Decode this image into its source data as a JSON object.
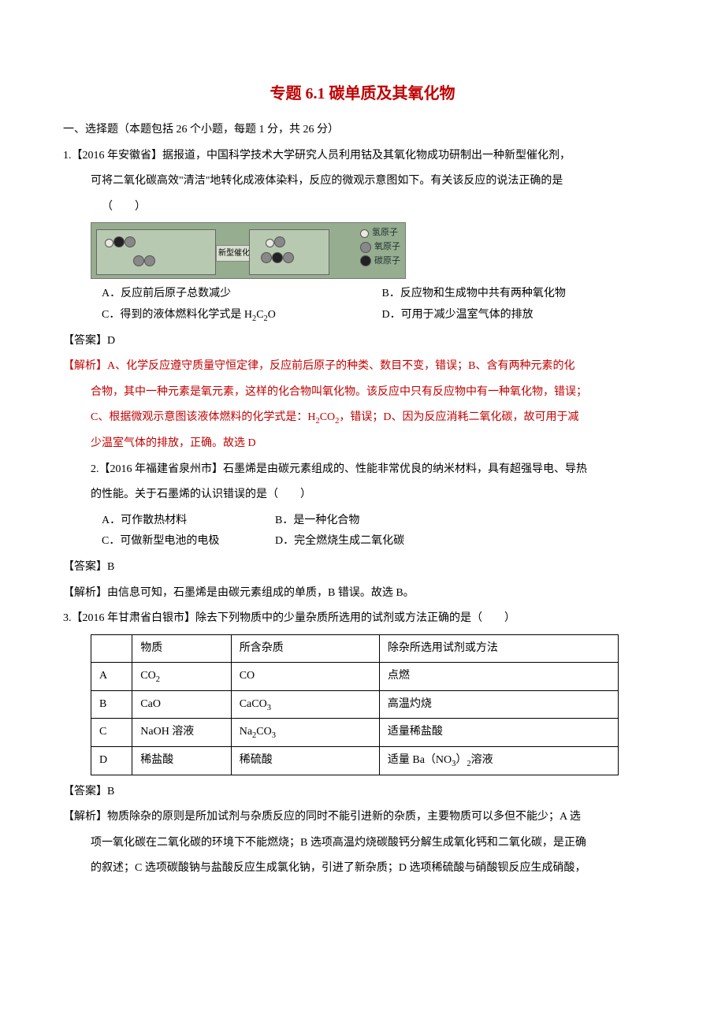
{
  "title": "专题 6.1 碳单质及其氧化物",
  "section_heading": "一、选择题（本题包括 26 个小题，每题 1 分，共 26 分）",
  "q1": {
    "stem_a": "1.【2016 年安徽省】据报道，中国科学技术大学研究人员利用钴及其氧化物成功研制出一种新型催化剂，",
    "stem_b": "可将二氧化碳高效\"清洁\"地转化成液体染料，反应的微观示意图如下。有关该反应的说法正确的是",
    "stem_c": "（　　）",
    "diagram": {
      "arrow_label": "新型催化剂",
      "legend": [
        "氢原子",
        "氧原子",
        "碳原子"
      ]
    },
    "optA": "A．反应前后原子总数减少",
    "optB": "B．反应物和生成物中共有两种氧化物",
    "optC": "C．得到的液体燃料化学式是 H₂C₂O",
    "optD": "D．可用于减少温室气体的排放",
    "answer_label": "【答案】D",
    "analysis_label": "【解析】",
    "analysis_a": "A、化学反应遵守质量守恒定律，反应前后原子的种类、数目不变，错误；B、含有两种元素的化",
    "analysis_b": "合物，其中一种元素是氧元素，这样的化合物叫氧化物。该反应中只有反应物中有一种氧化物，错误；",
    "analysis_c": "C、根据微观示意图该液体燃料的化学式是：H₂CO₂，错误；D、因为反应消耗二氧化碳，故可用于减",
    "analysis_d": "少温室气体的排放，正确。故选 D"
  },
  "q2": {
    "stem_a": "2.【2016 年福建省泉州市】石墨烯是由碳元素组成的、性能非常优良的纳米材料，具有超强导电、导热",
    "stem_b": "的性能。关于石墨烯的认识错误的是（　　）",
    "optA": "A．可作散热材料",
    "optB": "B．是一种化合物",
    "optC": "C．可做新型电池的电极",
    "optD": "D．完全燃烧生成二氧化碳",
    "answer_label": "【答案】B",
    "analysis": "【解析】由信息可知，石墨烯是由碳元素组成的单质，B 错误。故选 B。"
  },
  "q3": {
    "stem": "3.【2016 年甘肃省白银市】除去下列物质中的少量杂质所选用的试剂或方法正确的是（　　）",
    "table": {
      "headers": [
        "",
        "物质",
        "所含杂质",
        "除杂所选用试剂或方法"
      ],
      "rows": [
        [
          "A",
          "CO₂",
          "CO",
          "点燃"
        ],
        [
          "B",
          "CaO",
          "CaCO₃",
          "高温灼烧"
        ],
        [
          "C",
          "NaOH 溶液",
          "Na₂CO₃",
          "适量稀盐酸"
        ],
        [
          "D",
          "稀盐酸",
          "稀硫酸",
          "适量 Ba（NO₃）₂溶液"
        ]
      ],
      "col_widths": [
        "50px",
        "120px",
        "180px",
        "290px"
      ]
    },
    "answer_label": "【答案】B",
    "analysis_a": "【解析】物质除杂的原则是所加试剂与杂质反应的同时不能引进新的杂质，主要物质可以多但不能少；A 选",
    "analysis_b": "项一氧化碳在二氧化碳的环境下不能燃烧；B 选项高温灼烧碳酸钙分解生成氧化钙和二氧化碳，是正确",
    "analysis_c": "的叙述；C 选项碳酸钠与盐酸反应生成氯化钠，引进了新杂质；D 选项稀硫酸与硝酸钡反应生成硝酸，"
  }
}
